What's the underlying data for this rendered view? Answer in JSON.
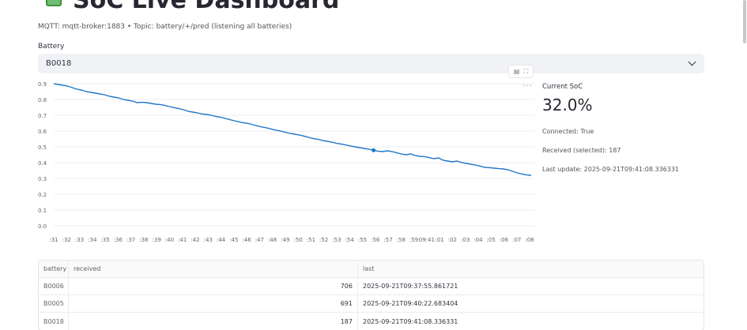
{
  "header": {
    "title": "SoC Live Dashboard",
    "subtitle": "MQTT: mqtt-broker:1883 • Topic: battery/+/pred (listening all batteries)"
  },
  "battery_select": {
    "label": "Battery",
    "value": "B0018"
  },
  "side_panel": {
    "current_label": "Current SoC",
    "current_value": "32.0%",
    "connected": "Connected: True",
    "received": "Received (selected): 187",
    "last_update": "Last update: 2025-09-21T09:41:08.336331"
  },
  "chart_data": {
    "type": "line",
    "x_ticks": [
      ":31",
      ":32",
      ":33",
      ":34",
      ":35",
      ":36",
      ":37",
      ":38",
      ":39",
      ":40",
      ":41",
      ":42",
      ":43",
      ":44",
      ":45",
      ":46",
      ":47",
      ":48",
      ":49",
      ":50",
      ":51",
      ":52",
      ":53",
      ":54",
      ":55",
      ":56",
      ":57",
      ":58",
      ":59",
      "09:41",
      ":01",
      ":02",
      ":03",
      ":04",
      ":05",
      ":06",
      ":07",
      ":08"
    ],
    "y_ticks": [
      "0.0",
      "0.1",
      "0.2",
      "0.3",
      "0.4",
      "0.5",
      "0.6",
      "0.7",
      "0.8",
      "0.9"
    ],
    "ylim": [
      0,
      0.9
    ],
    "series": [
      {
        "color": "#1f77c8",
        "values": [
          0.9,
          0.895,
          0.89,
          0.885,
          0.875,
          0.865,
          0.86,
          0.85,
          0.845,
          0.84,
          0.835,
          0.83,
          0.82,
          0.815,
          0.81,
          0.8,
          0.795,
          0.79,
          0.78,
          0.782,
          0.78,
          0.775,
          0.77,
          0.768,
          0.762,
          0.755,
          0.748,
          0.742,
          0.735,
          0.725,
          0.72,
          0.715,
          0.708,
          0.705,
          0.7,
          0.692,
          0.688,
          0.68,
          0.672,
          0.665,
          0.658,
          0.652,
          0.648,
          0.64,
          0.632,
          0.625,
          0.62,
          0.612,
          0.605,
          0.6,
          0.592,
          0.585,
          0.58,
          0.575,
          0.568,
          0.56,
          0.552,
          0.548,
          0.54,
          0.535,
          0.53,
          0.522,
          0.518,
          0.512,
          0.505,
          0.5,
          0.495,
          0.49,
          0.485,
          0.478,
          0.472,
          0.47,
          0.475,
          0.47,
          0.462,
          0.455,
          0.45,
          0.455,
          0.445,
          0.44,
          0.438,
          0.432,
          0.425,
          0.43,
          0.415,
          0.41,
          0.405,
          0.41,
          0.4,
          0.395,
          0.39,
          0.385,
          0.378,
          0.37,
          0.368,
          0.365,
          0.362,
          0.36,
          0.355,
          0.345,
          0.335,
          0.328,
          0.322,
          0.32
        ],
        "highlight_index": 69
      }
    ]
  },
  "table": {
    "columns": [
      "battery",
      "received",
      "last"
    ],
    "rows": [
      {
        "battery": "B0006",
        "received": "706",
        "last": "2025-09-21T09:37:55.861721"
      },
      {
        "battery": "B0005",
        "received": "691",
        "last": "2025-09-21T09:40:22.683404"
      },
      {
        "battery": "B0018",
        "received": "187",
        "last": "2025-09-21T09:41:08.336331"
      }
    ]
  },
  "icons": {
    "title": "battery-icon",
    "chart_table": "table-icon",
    "chart_fullscreen": "fullscreen-icon",
    "more": "more-icon",
    "select": "chevron-down-icon"
  }
}
